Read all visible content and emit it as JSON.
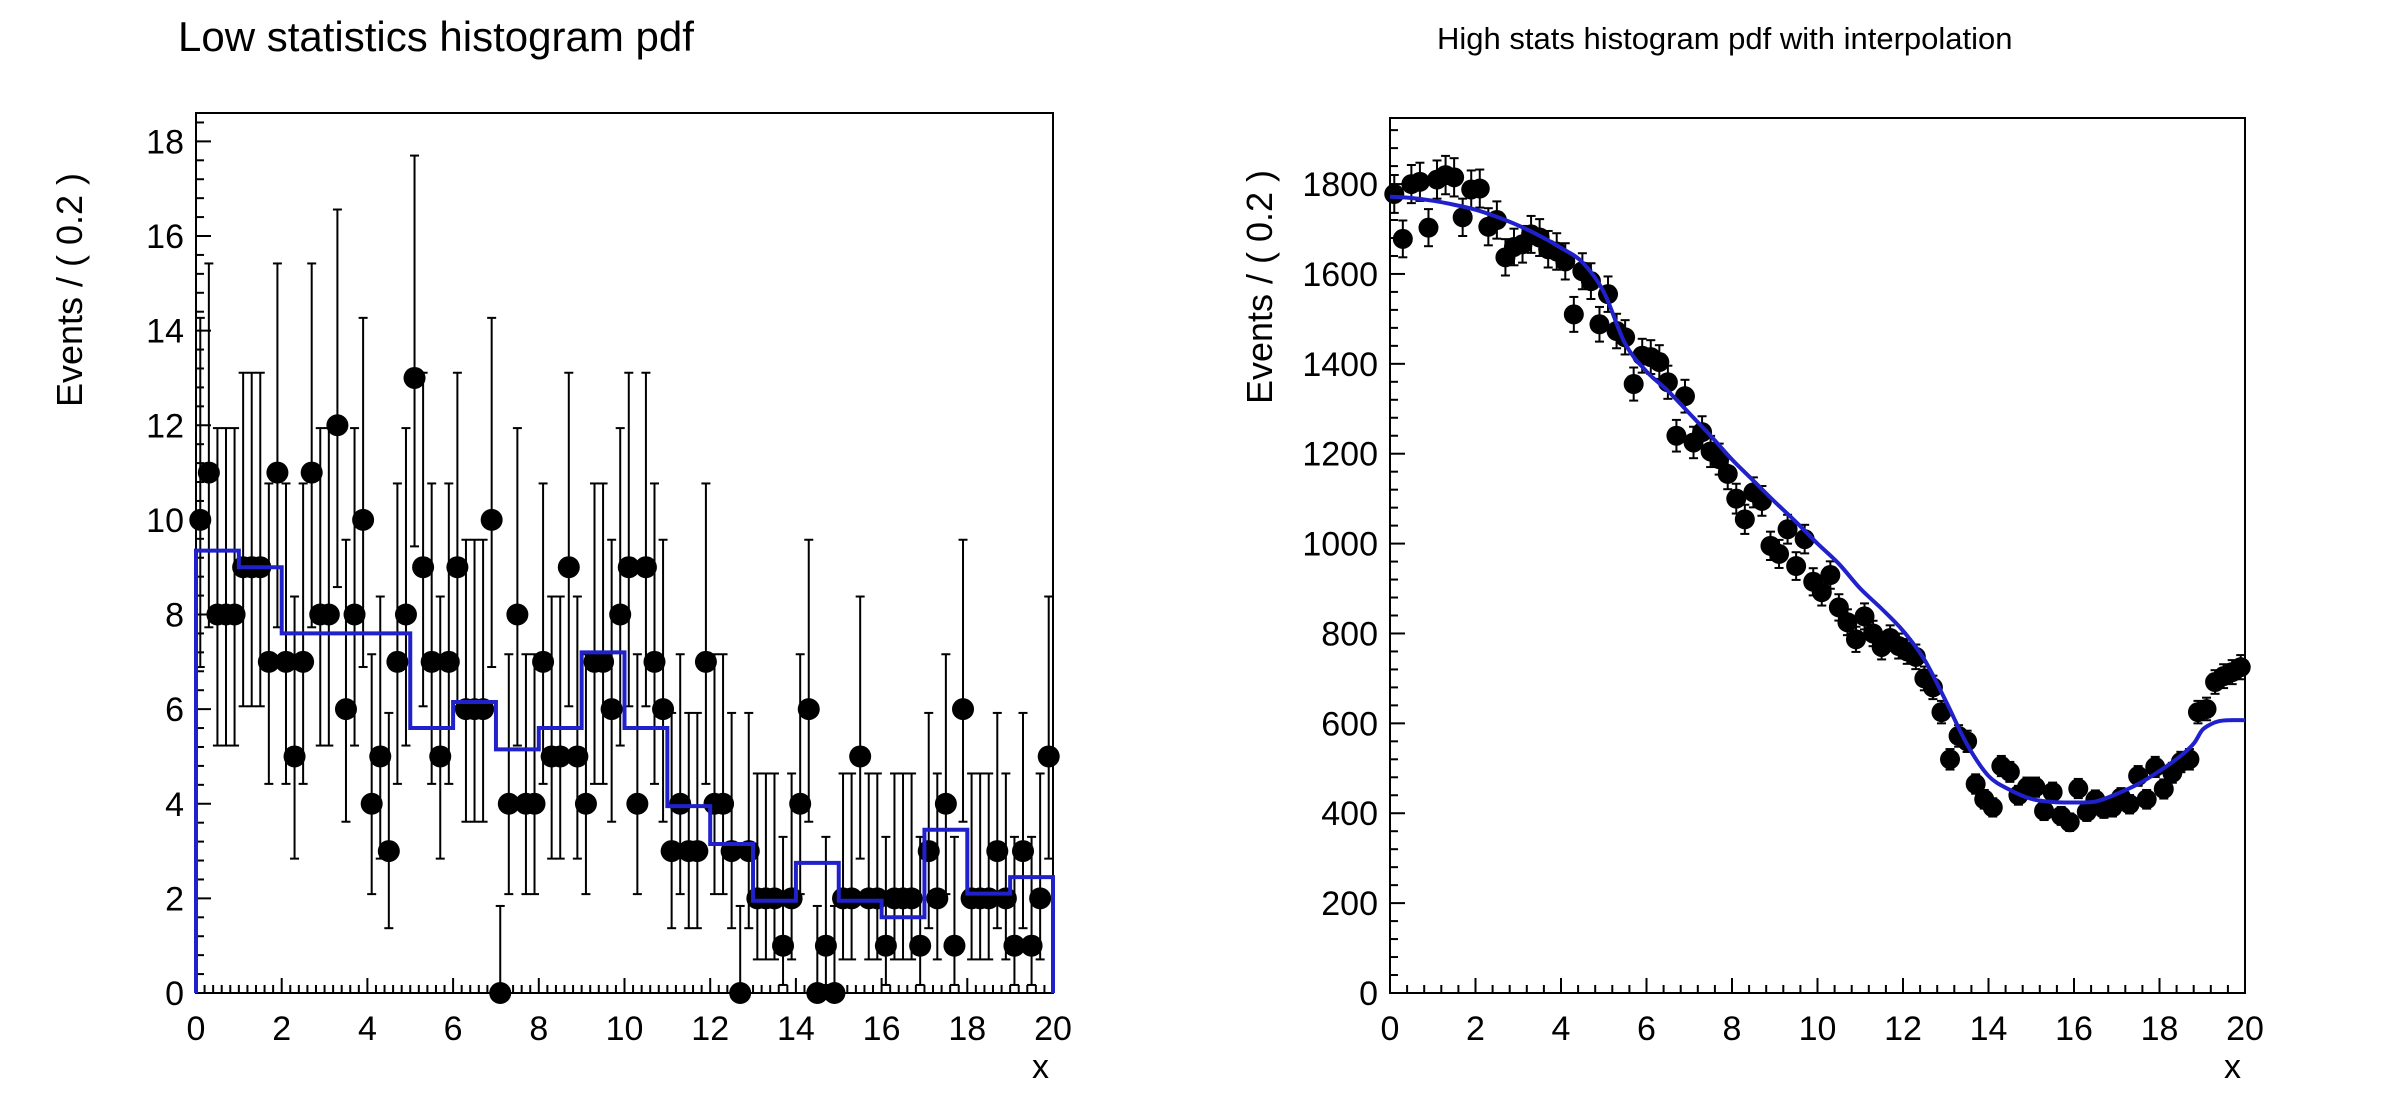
{
  "page": {
    "background": "#ffffff"
  },
  "chart_data": [
    {
      "type": "scatter",
      "title": "Low statistics histogram pdf",
      "xlabel": "x",
      "ylabel": "Events / ( 0.2 )",
      "xlim": [
        0,
        20
      ],
      "ylim": [
        0,
        18.6
      ],
      "x_tick_labels": [
        0,
        2,
        4,
        6,
        8,
        10,
        12,
        14,
        16,
        18,
        20
      ],
      "y_tick_labels": [
        0,
        2,
        4,
        6,
        8,
        10,
        12,
        14,
        16,
        18
      ],
      "x_minor_step": 0.2,
      "y_minor_step": 0.4,
      "grid": false,
      "legend": "none",
      "bin_start": 0.1,
      "bin_step": 0.2,
      "values": [
        10,
        11,
        8,
        8,
        8,
        9,
        9,
        9,
        7,
        11,
        7,
        5,
        7,
        11,
        8,
        8,
        12,
        6,
        8,
        10,
        4,
        5,
        3,
        7,
        8,
        13,
        9,
        7,
        5,
        7,
        9,
        6,
        6,
        6,
        10,
        0,
        4,
        8,
        4,
        4,
        7,
        5,
        5,
        9,
        5,
        4,
        7,
        7,
        6,
        8,
        9,
        4,
        9,
        7,
        6,
        3,
        4,
        3,
        3,
        7,
        4,
        4,
        3,
        0,
        3,
        2,
        2,
        2,
        1,
        2,
        4,
        6,
        0,
        1,
        0,
        2,
        2,
        5,
        2,
        2,
        1,
        2,
        2,
        2,
        1,
        3,
        2,
        4,
        1,
        6,
        2,
        2,
        2,
        3,
        2,
        1,
        3,
        1,
        2,
        5
      ],
      "error_type": "poisson",
      "pdf_type": "step-histogram",
      "pdf_bin_width": 1,
      "pdf_step_levels": [
        9.35,
        9.0,
        7.6,
        7.6,
        7.6,
        5.6,
        6.15,
        5.15,
        5.6,
        7.2,
        5.6,
        3.95,
        3.15,
        1.95,
        2.75,
        1.95,
        1.6,
        3.45,
        2.1,
        2.45
      ],
      "marker_color": "#000000",
      "pdf_color": "#2121cc"
    },
    {
      "type": "scatter",
      "title": "High stats histogram pdf with interpolation",
      "xlabel": "x",
      "ylabel": "Events / ( 0.2 )",
      "xlim": [
        0,
        20
      ],
      "ylim": [
        0,
        1947
      ],
      "x_tick_labels": [
        0,
        2,
        4,
        6,
        8,
        10,
        12,
        14,
        16,
        18,
        20
      ],
      "y_tick_labels": [
        0,
        200,
        400,
        600,
        800,
        1000,
        1200,
        1400,
        1600,
        1800
      ],
      "x_minor_step": 0.4,
      "y_minor_step": 40,
      "grid": false,
      "legend": "none",
      "bin_start": 0.1,
      "bin_step": 0.2,
      "values": [
        1778,
        1678,
        1800,
        1805,
        1703,
        1810,
        1820,
        1815,
        1726,
        1788,
        1790,
        1705,
        1720,
        1637,
        1660,
        1666,
        1688,
        1681,
        1655,
        1650,
        1628,
        1510,
        1606,
        1584,
        1488,
        1555,
        1473,
        1459,
        1355,
        1418,
        1415,
        1404,
        1359,
        1240,
        1328,
        1225,
        1248,
        1205,
        1188,
        1155,
        1100,
        1054,
        1114,
        1095,
        995,
        977,
        1032,
        950,
        1010,
        915,
        892,
        930,
        858,
        825,
        787,
        838,
        800,
        770,
        790,
        772,
        760,
        748,
        700,
        680,
        625,
        520,
        572,
        560,
        465,
        431,
        413,
        505,
        492,
        440,
        458,
        458,
        405,
        447,
        394,
        380,
        455,
        403,
        430,
        410,
        413,
        435,
        420,
        483,
        431,
        503,
        454,
        490,
        514,
        520,
        625,
        632,
        692,
        705,
        714,
        725
      ],
      "error_type": "sqrt",
      "pdf_type": "smooth-curve",
      "pdf_curve": [
        [
          0,
          1772
        ],
        [
          0.5,
          1769
        ],
        [
          1,
          1763
        ],
        [
          1.5,
          1754
        ],
        [
          2,
          1743
        ],
        [
          2.5,
          1727
        ],
        [
          3,
          1708
        ],
        [
          3.5,
          1685
        ],
        [
          4,
          1658
        ],
        [
          4.5,
          1626
        ],
        [
          5,
          1560
        ],
        [
          5.5,
          1445
        ],
        [
          6,
          1383
        ],
        [
          6.5,
          1340
        ],
        [
          7,
          1290
        ],
        [
          7.5,
          1240
        ],
        [
          8,
          1187
        ],
        [
          8.5,
          1140
        ],
        [
          9,
          1093
        ],
        [
          9.5,
          1048
        ],
        [
          10,
          1000
        ],
        [
          10.5,
          955
        ],
        [
          11,
          900
        ],
        [
          11.5,
          855
        ],
        [
          12,
          806
        ],
        [
          12.5,
          742
        ],
        [
          13,
          650
        ],
        [
          13.5,
          553
        ],
        [
          14,
          483
        ],
        [
          14.5,
          452
        ],
        [
          15,
          432
        ],
        [
          15.5,
          425
        ],
        [
          16,
          424
        ],
        [
          16.5,
          426
        ],
        [
          17,
          443
        ],
        [
          17.5,
          465
        ],
        [
          18,
          494
        ],
        [
          18.5,
          528
        ],
        [
          18.8,
          555
        ],
        [
          19,
          585
        ],
        [
          19.2,
          598
        ],
        [
          19.4,
          605
        ],
        [
          19.6,
          607
        ],
        [
          20,
          607
        ]
      ],
      "marker_color": "#000000",
      "pdf_color": "#2121cc"
    }
  ]
}
